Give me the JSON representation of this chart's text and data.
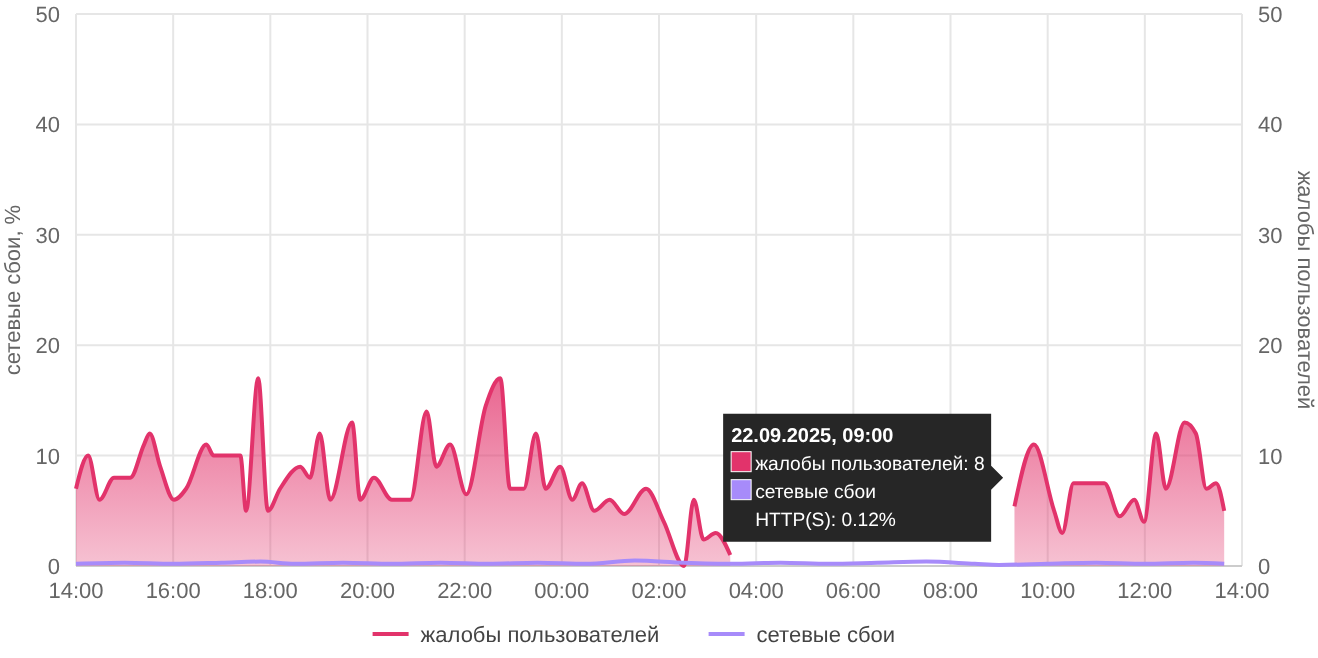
{
  "chart_data": {
    "type": "area",
    "ylabel": "сетевые сбои, %",
    "y2label": "жалобы пользователей",
    "xlim": [
      "2025-09-21T14:00",
      "2025-09-22T14:00"
    ],
    "xticks": [
      {
        "value": "2025-09-21T14:00",
        "label": "14:00"
      },
      {
        "value": "2025-09-21T16:00",
        "label": "16:00"
      },
      {
        "value": "2025-09-21T18:00",
        "label": "18:00"
      },
      {
        "value": "2025-09-21T20:00",
        "label": "20:00"
      },
      {
        "value": "2025-09-21T22:00",
        "label": "22:00"
      },
      {
        "value": "2025-09-22T00:00",
        "label": "00:00"
      },
      {
        "value": "2025-09-22T02:00",
        "label": "02:00"
      },
      {
        "value": "2025-09-22T04:00",
        "label": "04:00"
      },
      {
        "value": "2025-09-22T06:00",
        "label": "06:00"
      },
      {
        "value": "2025-09-22T08:00",
        "label": "08:00"
      },
      {
        "value": "2025-09-22T10:00",
        "label": "10:00"
      },
      {
        "value": "2025-09-22T12:00",
        "label": "12:00"
      },
      {
        "value": "2025-09-22T14:00",
        "label": "14:00"
      }
    ],
    "ylim": [
      0,
      50
    ],
    "yticks": [
      0,
      10,
      20,
      30,
      40,
      50
    ],
    "y2lim": [
      0,
      50
    ],
    "y2ticks": [
      0,
      10,
      20,
      30,
      40,
      50
    ],
    "grid": true,
    "legend": "bottom",
    "series": [
      {
        "name": "жалобы пользователей",
        "color": "#e2336b",
        "x": [
          "2025-09-21T14:00",
          "2025-09-21T14:15",
          "2025-09-21T14:29",
          "2025-09-21T14:47",
          "2025-09-21T15:07",
          "2025-09-21T15:24",
          "2025-09-21T15:31",
          "2025-09-21T15:44",
          "2025-09-21T16:01",
          "2025-09-21T16:16",
          "2025-09-21T16:41",
          "2025-09-21T16:50",
          "2025-09-21T17:08",
          "2025-09-21T17:23",
          "2025-09-21T17:30",
          "2025-09-21T17:45",
          "2025-09-21T17:57",
          "2025-09-21T18:12",
          "2025-09-21T18:37",
          "2025-09-21T18:49",
          "2025-09-21T19:01",
          "2025-09-21T19:14",
          "2025-09-21T19:41",
          "2025-09-21T19:51",
          "2025-09-21T20:08",
          "2025-09-21T20:30",
          "2025-09-21T20:53",
          "2025-09-21T21:13",
          "2025-09-21T21:25",
          "2025-09-21T21:42",
          "2025-09-21T22:02",
          "2025-09-21T22:26",
          "2025-09-21T22:44",
          "2025-09-21T22:56",
          "2025-09-21T23:13",
          "2025-09-21T23:28",
          "2025-09-21T23:40",
          "2025-09-21T23:58",
          "2025-09-22T00:13",
          "2025-09-22T00:25",
          "2025-09-22T00:40",
          "2025-09-22T00:59",
          "2025-09-22T01:17",
          "2025-09-22T01:44",
          "2025-09-22T02:06",
          "2025-09-22T02:31",
          "2025-09-22T02:43",
          "2025-09-22T02:55",
          "2025-09-22T03:10",
          "2025-09-22T03:28",
          "2025-09-22T03:52",
          "2025-09-22T04:17",
          "2025-09-22T04:34",
          "2025-09-22T04:49",
          "2025-09-22T05:14",
          "2025-09-22T05:38",
          "2025-09-22T06:01",
          "2025-09-22T06:13",
          "2025-09-22T06:28",
          "2025-09-22T06:53",
          "2025-09-22T07:10",
          "2025-09-22T07:29",
          "2025-09-22T07:54",
          "2025-09-22T08:17",
          "2025-09-22T08:41",
          "2025-09-22T08:56",
          "2025-09-22T09:19",
          "2025-09-22T09:43",
          "2025-09-22T10:08",
          "2025-09-22T10:18",
          "2025-09-22T10:32",
          "2025-09-22T11:10",
          "2025-09-22T11:29",
          "2025-09-22T11:47",
          "2025-09-22T11:59",
          "2025-09-22T12:14",
          "2025-09-22T12:26",
          "2025-09-22T12:49",
          "2025-09-22T13:03",
          "2025-09-22T13:16",
          "2025-09-22T13:28",
          "2025-09-22T13:38"
        ],
        "values": [
          7,
          10,
          6,
          8,
          8,
          11,
          12,
          9,
          6,
          7,
          11,
          10,
          10,
          10,
          5,
          17,
          5,
          7,
          9,
          8,
          12,
          6,
          13,
          6,
          8,
          6,
          6,
          14,
          9,
          11,
          6.5,
          14.5,
          17,
          7,
          7,
          12,
          7,
          9,
          6,
          7.5,
          5,
          6,
          4.7,
          7,
          4,
          0,
          6,
          2.4,
          3,
          1,
          null,
          null,
          null,
          null,
          null,
          null,
          null,
          null,
          null,
          null,
          null,
          null,
          null,
          null,
          null,
          null,
          5.4,
          11,
          5,
          3,
          7.5,
          7.5,
          4.5,
          6,
          4,
          12,
          7,
          13,
          12,
          7,
          7.5,
          5
        ]
      },
      {
        "name": "сетевые сбои",
        "type": "line",
        "color": "#a78bfa",
        "x": [
          "2025-09-21T14:00",
          "2025-09-21T15:00",
          "2025-09-21T16:00",
          "2025-09-21T17:00",
          "2025-09-21T17:48",
          "2025-09-21T18:30",
          "2025-09-21T19:30",
          "2025-09-21T20:30",
          "2025-09-21T21:30",
          "2025-09-21T22:30",
          "2025-09-21T23:30",
          "2025-09-22T00:30",
          "2025-09-22T01:30",
          "2025-09-22T02:30",
          "2025-09-22T03:30",
          "2025-09-22T04:30",
          "2025-09-22T05:30",
          "2025-09-22T06:30",
          "2025-09-22T07:30",
          "2025-09-22T08:30",
          "2025-09-22T09:00",
          "2025-09-22T10:00",
          "2025-09-22T11:00",
          "2025-09-22T12:00",
          "2025-09-22T13:00",
          "2025-09-22T13:38"
        ],
        "values": [
          0.2,
          0.3,
          0.2,
          0.3,
          0.4,
          0.2,
          0.3,
          0.2,
          0.3,
          0.2,
          0.3,
          0.2,
          0.5,
          0.3,
          0.2,
          0.3,
          0.2,
          0.3,
          0.4,
          0.2,
          0.1,
          0.2,
          0.3,
          0.2,
          0.3,
          0.2
        ]
      }
    ],
    "annotations": [
      "22.09.2025, 09:00\nжалобы пользователей: 8\nсетевые сбои\nHTTP(S): 0.12%"
    ]
  }
}
